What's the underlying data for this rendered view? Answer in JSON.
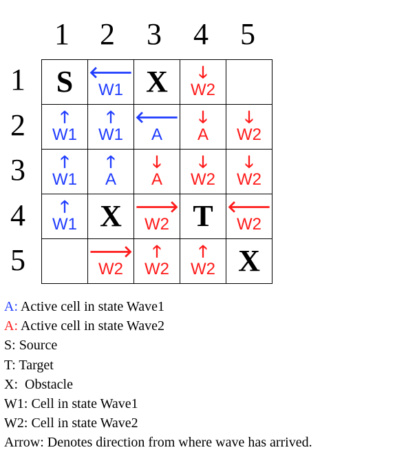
{
  "columns": [
    "1",
    "2",
    "3",
    "4",
    "5"
  ],
  "rows": [
    "1",
    "2",
    "3",
    "4",
    "5"
  ],
  "colors": {
    "wave1": "#1f3cff",
    "wave2": "#ff1a1a",
    "text": "#000000"
  },
  "grid": [
    [
      {
        "text": "S",
        "big": true
      },
      {
        "arrow": "left-arrow",
        "glyph": "🡐",
        "text": "W1",
        "color": "blue"
      },
      {
        "text": "X",
        "big": true
      },
      {
        "arrow": "down-arrow",
        "glyph": "🡓",
        "text": "W2",
        "color": "red"
      },
      {
        "text": ""
      }
    ],
    [
      {
        "arrow": "up-arrow",
        "glyph": "🡑",
        "text": "W1",
        "color": "blue"
      },
      {
        "arrow": "up-arrow",
        "glyph": "🡑",
        "text": "W1",
        "color": "blue"
      },
      {
        "arrow": "left-arrow",
        "glyph": "🡐",
        "text": "A",
        "color": "blue"
      },
      {
        "arrow": "down-arrow",
        "glyph": "🡓",
        "text": "A",
        "color": "red"
      },
      {
        "arrow": "down-arrow",
        "glyph": "🡓",
        "text": "W2",
        "color": "red"
      }
    ],
    [
      {
        "arrow": "up-arrow",
        "glyph": "🡑",
        "text": "W1",
        "color": "blue"
      },
      {
        "arrow": "up-arrow",
        "glyph": "🡑",
        "text": "A",
        "color": "blue"
      },
      {
        "arrow": "down-arrow",
        "glyph": "🡓",
        "text": "A",
        "color": "red"
      },
      {
        "arrow": "down-arrow",
        "glyph": "🡓",
        "text": "W2",
        "color": "red"
      },
      {
        "arrow": "down-arrow",
        "glyph": "🡓",
        "text": "W2",
        "color": "red"
      }
    ],
    [
      {
        "arrow": "up-arrow",
        "glyph": "🡑",
        "text": "W1",
        "color": "blue"
      },
      {
        "text": "X",
        "big": true
      },
      {
        "arrow": "right-arrow",
        "glyph": "🡒",
        "text": "W2",
        "color": "red"
      },
      {
        "text": "T",
        "big": true
      },
      {
        "arrow": "left-arrow",
        "glyph": "🡐",
        "text": "W2",
        "color": "red"
      }
    ],
    [
      {
        "text": ""
      },
      {
        "arrow": "right-arrow",
        "glyph": "🡒",
        "text": "W2",
        "color": "red"
      },
      {
        "arrow": "up-arrow",
        "glyph": "🡑",
        "text": "W2",
        "color": "red"
      },
      {
        "arrow": "up-arrow",
        "glyph": "🡑",
        "text": "W2",
        "color": "red"
      },
      {
        "text": "X",
        "big": true
      }
    ]
  ],
  "legend": [
    {
      "key": "A:",
      "key_color": "blue",
      "text": " Active cell in state Wave1"
    },
    {
      "key": "A:",
      "key_color": "red",
      "text": " Active cell in state Wave2"
    },
    {
      "key": "S:",
      "key_color": "",
      "text": " Source"
    },
    {
      "key": "T:",
      "key_color": "",
      "text": " Target"
    },
    {
      "key": "X:",
      "key_color": "",
      "text": "  Obstacle"
    },
    {
      "key": "W1:",
      "key_color": "",
      "text": " Cell in state Wave1"
    },
    {
      "key": "W2:",
      "key_color": "",
      "text": " Cell in state Wave2"
    },
    {
      "key": "Arrow:",
      "key_color": "",
      "text": " Denotes direction from where wave has arrived."
    }
  ]
}
